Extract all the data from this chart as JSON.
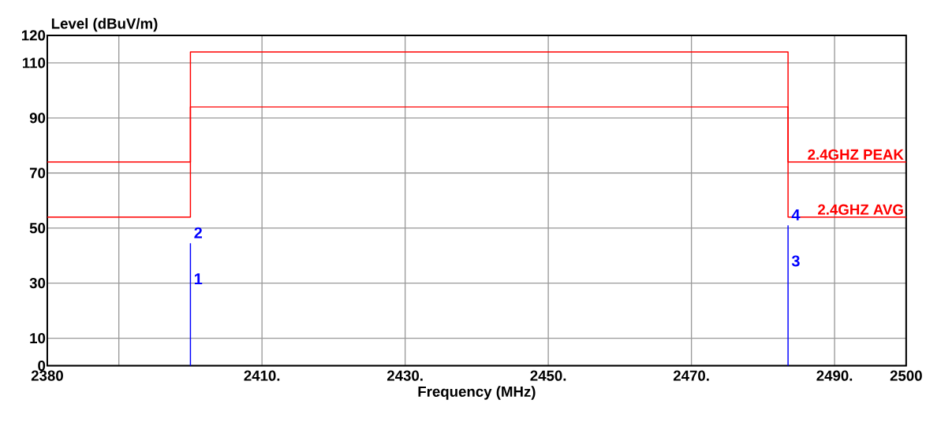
{
  "chart_data": {
    "type": "line",
    "xlabel": "Frequency (MHz)",
    "ylabel": "Level (dBuV/m)",
    "xlim": [
      2380,
      2500
    ],
    "ylim": [
      0,
      120
    ],
    "xticks": [
      2380,
      {
        "value": 2390,
        "label": null
      },
      {
        "value": 2410,
        "label": "2410."
      },
      {
        "value": 2430,
        "label": "2430."
      },
      {
        "value": 2450,
        "label": "2450."
      },
      {
        "value": 2470,
        "label": "2470."
      },
      {
        "value": 2490,
        "label": "2490."
      },
      2500
    ],
    "yticks": [
      0,
      10,
      30,
      50,
      70,
      90,
      110,
      120
    ],
    "grid": true,
    "marker": "none",
    "line_style": "solid",
    "series": [
      {
        "name": "2.4GHZ PEAK",
        "type": "step",
        "color": "#ff0000",
        "x": [
          2380,
          2400,
          2483.5,
          2500
        ],
        "values": [
          74,
          114,
          74,
          74
        ]
      },
      {
        "name": "2.4GHZ  AVG",
        "type": "step",
        "color": "#ff0000",
        "x": [
          2380,
          2400,
          2483.5,
          2500
        ],
        "values": [
          54,
          94,
          54,
          54
        ]
      },
      {
        "color": "#0000ff",
        "x": [
          2400,
          2400
        ],
        "values": [
          0,
          44.5
        ]
      },
      {
        "color": "#0000ff",
        "x": [
          2483.5,
          2483.5
        ],
        "values": [
          0,
          51
        ]
      }
    ],
    "annotations": [
      "1",
      "2",
      "3",
      "4"
    ]
  }
}
